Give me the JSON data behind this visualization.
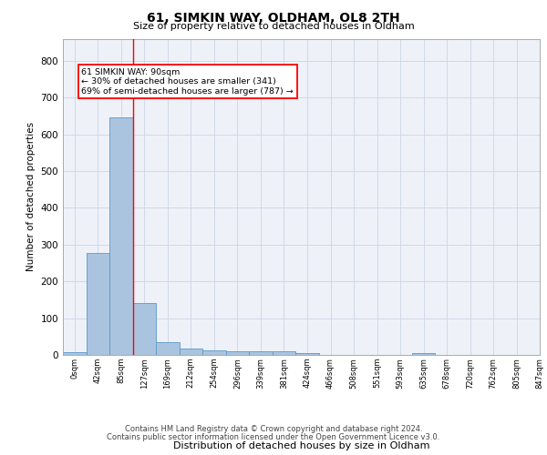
{
  "title1": "61, SIMKIN WAY, OLDHAM, OL8 2TH",
  "title2": "Size of property relative to detached houses in Oldham",
  "xlabel": "Distribution of detached houses by size in Oldham",
  "ylabel": "Number of detached properties",
  "bin_labels": [
    "0sqm",
    "42sqm",
    "85sqm",
    "127sqm",
    "169sqm",
    "212sqm",
    "254sqm",
    "296sqm",
    "339sqm",
    "381sqm",
    "424sqm",
    "466sqm",
    "508sqm",
    "551sqm",
    "593sqm",
    "635sqm",
    "678sqm",
    "720sqm",
    "762sqm",
    "805sqm",
    "847sqm"
  ],
  "bar_heights": [
    8,
    277,
    645,
    140,
    35,
    18,
    12,
    11,
    10,
    9,
    5,
    0,
    0,
    0,
    0,
    6,
    0,
    0,
    0,
    0
  ],
  "bar_color": "#aac4e0",
  "bar_edge_color": "#5a96c8",
  "red_line_x": 2.5,
  "annotation_text": "61 SIMKIN WAY: 90sqm\n← 30% of detached houses are smaller (341)\n69% of semi-detached houses are larger (787) →",
  "ylim": [
    0,
    860
  ],
  "yticks": [
    0,
    100,
    200,
    300,
    400,
    500,
    600,
    700,
    800
  ],
  "grid_color": "#d0d8e8",
  "bg_color": "#eef2f8",
  "footer1": "Contains HM Land Registry data © Crown copyright and database right 2024.",
  "footer2": "Contains public sector information licensed under the Open Government Licence v3.0."
}
